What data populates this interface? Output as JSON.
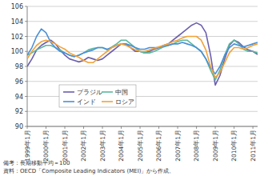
{
  "chart_data": {
    "type": "line",
    "categories": [
      "1999年1月",
      null,
      null,
      null,
      "2000年1月",
      null,
      null,
      null,
      "2001年1月",
      null,
      null,
      null,
      "2002年1月",
      null,
      null,
      null,
      "2003年1月",
      null,
      null,
      null,
      "2004年1月",
      null,
      null,
      null,
      "2005年1月",
      null,
      null,
      null,
      "2006年1月",
      null,
      null,
      null,
      "2007年1月",
      null,
      null,
      null,
      "2008年1月",
      null,
      null,
      null,
      "2009年1月",
      null,
      null,
      null,
      "2010年1月",
      null,
      null,
      null,
      "2011年1月",
      null
    ],
    "series": [
      {
        "name": "ブラジル",
        "color": "#6b5fae",
        "values": [
          98,
          99,
          100.2,
          100.8,
          101.2,
          101.5,
          101,
          100.2,
          99.5,
          99,
          98.8,
          98.6,
          98.8,
          99.2,
          99,
          98.8,
          99,
          99.5,
          100,
          100.5,
          101,
          101,
          100.5,
          100,
          100,
          99.8,
          100,
          100.3,
          100.5,
          100.8,
          101,
          101.5,
          102,
          102.5,
          103,
          103.5,
          103.8,
          103.5,
          102.5,
          99.5,
          95.5,
          96.8,
          99,
          100.8,
          101.5,
          101.2,
          100.6,
          100.2,
          100,
          99.6
        ]
      },
      {
        "name": "中国",
        "color": "#5cb89c",
        "values": [
          99.5,
          99.8,
          100.2,
          100.5,
          100.8,
          100.8,
          100.5,
          100.2,
          99.8,
          99.5,
          99.3,
          99.5,
          99.8,
          100.2,
          100.4,
          100.5,
          100.5,
          100.2,
          100.6,
          101,
          101.5,
          101.5,
          101,
          100.5,
          100,
          99.8,
          99.8,
          100,
          100.3,
          100.6,
          100.8,
          101,
          101.3,
          101.5,
          101.5,
          101,
          100.5,
          100,
          99,
          97.5,
          96.2,
          97.5,
          99.5,
          101,
          101.5,
          101,
          100.3,
          100,
          100,
          99.8
        ]
      },
      {
        "name": "インド",
        "color": "#4a8fd8",
        "values": [
          99.5,
          100.5,
          102,
          103,
          102.5,
          101.2,
          100.5,
          100,
          99.8,
          99.5,
          99.3,
          99.5,
          99.8,
          100,
          100.2,
          100.5,
          100.5,
          100.3,
          100.5,
          100.8,
          101,
          101,
          100.8,
          100.5,
          100.3,
          100.3,
          100.5,
          100.5,
          100.5,
          100.7,
          100.8,
          101,
          101,
          101.2,
          101,
          100.8,
          100.5,
          100,
          99,
          97.8,
          97,
          98,
          99.5,
          100.5,
          101,
          100.8,
          100.6,
          100.8,
          101,
          101.2
        ]
      },
      {
        "name": "ロシア",
        "color": "#f2a23a",
        "values": [
          99,
          100,
          100.8,
          101.3,
          101.5,
          101.3,
          101,
          100.6,
          100.3,
          99.8,
          99.5,
          99.2,
          98.8,
          98.5,
          98.5,
          99,
          99.5,
          100,
          100.5,
          100.8,
          101,
          100.8,
          100.5,
          100.2,
          100,
          100,
          100.2,
          100.4,
          100.6,
          100.8,
          101,
          101.3,
          101.5,
          101.8,
          102,
          102,
          102,
          101.5,
          100.2,
          98,
          96.5,
          97.2,
          98.5,
          99.8,
          100.5,
          100.5,
          100.3,
          100.5,
          100.8,
          101
        ]
      }
    ],
    "ylim": [
      90,
      106
    ],
    "yticks": [
      90,
      92,
      94,
      96,
      98,
      100,
      102,
      104,
      106
    ],
    "grid": true,
    "legend": "lower left",
    "annotations": [
      "備考：長期移動平均＝100",
      "資料：OECD「Composite Leading Indicators (MEI)」から作成。"
    ]
  }
}
